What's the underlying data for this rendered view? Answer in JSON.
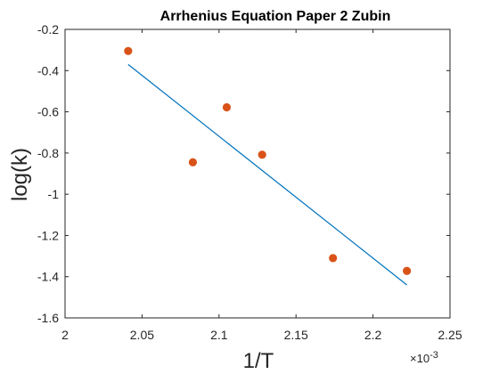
{
  "chart_data": {
    "type": "scatter",
    "title": "Arrhenius Equation Paper 2 Zubin",
    "xlabel": "1/T",
    "ylabel": "log(k)",
    "x_exponent_label": {
      "base": "×10",
      "exponent": "-3"
    },
    "xlim": [
      2.0,
      2.25
    ],
    "ylim": [
      -1.6,
      -0.2
    ],
    "x_ticks": [
      2.0,
      2.05,
      2.1,
      2.15,
      2.2,
      2.25
    ],
    "x_tick_labels": [
      "2",
      "2.05",
      "2.1",
      "2.15",
      "2.2",
      "2.25"
    ],
    "y_ticks": [
      -0.2,
      -0.4,
      -0.6,
      -0.8,
      -1.0,
      -1.2,
      -1.4,
      -1.6
    ],
    "y_tick_labels": [
      "-0.2",
      "-0.4",
      "-0.6",
      "-0.8",
      "-1",
      "-1.2",
      "-1.4",
      "-1.6"
    ],
    "grid": false,
    "series": [
      {
        "type": "scatter",
        "color": "#D95319",
        "points": [
          {
            "x": 2.041,
            "y": -0.305
          },
          {
            "x": 2.083,
            "y": -0.845
          },
          {
            "x": 2.105,
            "y": -0.578
          },
          {
            "x": 2.128,
            "y": -0.808
          },
          {
            "x": 2.174,
            "y": -1.31
          },
          {
            "x": 2.222,
            "y": -1.372
          }
        ]
      },
      {
        "type": "line",
        "color": "#0072BD",
        "points": [
          {
            "x": 2.041,
            "y": -0.37
          },
          {
            "x": 2.222,
            "y": -1.44
          }
        ]
      }
    ]
  }
}
